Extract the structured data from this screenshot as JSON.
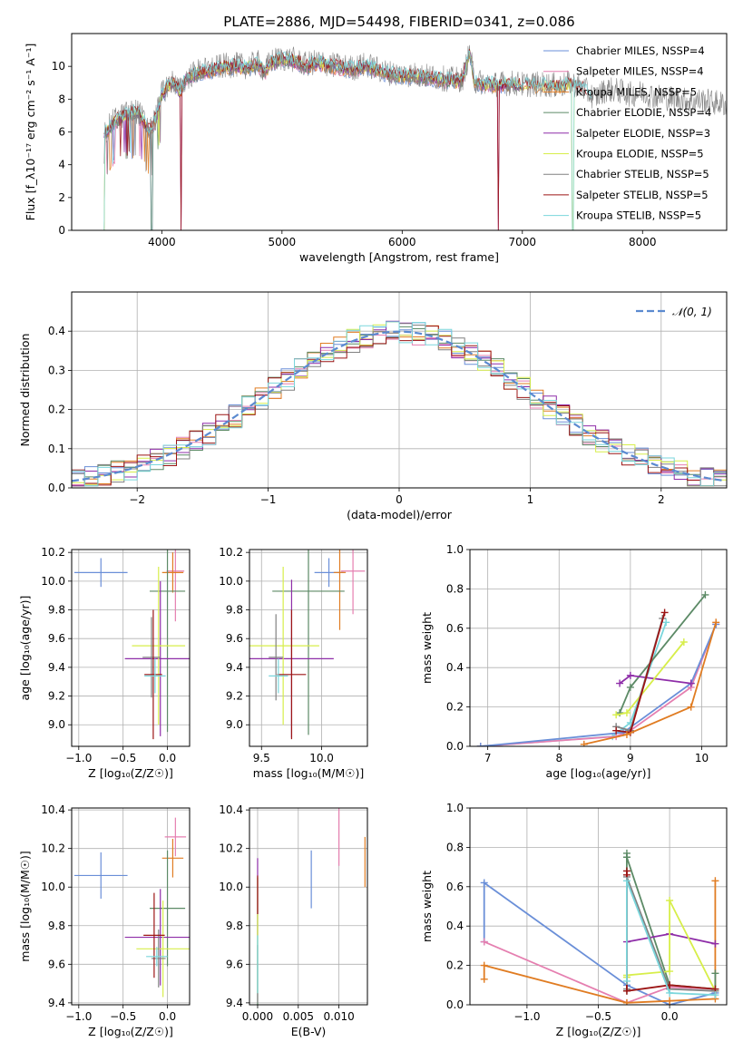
{
  "figure_title": "PLATE=2886, MJD=54498, FIBERID=0341, z=0.086",
  "colors": {
    "cornflower": "#6a8fd8",
    "pink": "#e57fb0",
    "orange": "#e07c22",
    "green": "#5c8a66",
    "purple": "#8e2da8",
    "lime": "#d7ee4a",
    "gray": "#808080",
    "darkred": "#9c1515",
    "cyan": "#7ad6dc"
  },
  "chart_data": [
    {
      "id": "spectrum",
      "type": "line",
      "title": "",
      "xlabel": "wavelength [Angstrom, rest frame]",
      "ylabel": "Flux [f_λ10⁻¹⁷ erg cm⁻² s⁻¹ A⁻¹]",
      "xlim": [
        3250,
        8700
      ],
      "ylim": [
        0,
        12
      ],
      "xticks": [
        4000,
        5000,
        6000,
        7000,
        8000
      ],
      "yticks": [
        0,
        2,
        4,
        6,
        8,
        10
      ],
      "grid": false,
      "legend_position": "top-right",
      "series": [
        {
          "name": "Chabrier MILES, NSSP=4",
          "color": "#6a8fd8"
        },
        {
          "name": "Salpeter MILES, NSSP=4",
          "color": "#e57fb0"
        },
        {
          "name": "Kroupa MILES, NSSP=5",
          "color": "#e07c22"
        },
        {
          "name": "Chabrier ELODIE, NSSP=4",
          "color": "#5c8a66"
        },
        {
          "name": "Salpeter ELODIE, NSSP=3",
          "color": "#8e2da8"
        },
        {
          "name": "Kroupa ELODIE, NSSP=5",
          "color": "#d7ee4a"
        },
        {
          "name": "Chabrier STELIB, NSSP=5",
          "color": "#808080"
        },
        {
          "name": "Salpeter STELIB, NSSP=5",
          "color": "#9c1515"
        },
        {
          "name": "Kroupa STELIB, NSSP=5",
          "color": "#7ad6dc"
        }
      ],
      "data_spectrum": {
        "x": [
          3520,
          3600,
          3700,
          3800,
          3850,
          3900,
          3950,
          4000,
          4050,
          4100,
          4150,
          4200,
          4300,
          4400,
          4500,
          4600,
          4700,
          4800,
          4861,
          4900,
          5000,
          5100,
          5200,
          5300,
          5400,
          5500,
          5600,
          5700,
          5800,
          5900,
          6000,
          6100,
          6200,
          6300,
          6400,
          6500,
          6563,
          6600,
          6700,
          6800,
          6900,
          7000,
          7100,
          7200,
          7300,
          7400,
          7500,
          7600,
          7700,
          7800,
          7900,
          8000,
          8100,
          8200,
          8300,
          8400,
          8500,
          8600,
          8700
        ],
        "y": [
          5.8,
          6.6,
          7.0,
          7.2,
          6.6,
          6.0,
          6.8,
          8.2,
          8.8,
          9.0,
          8.4,
          9.2,
          9.6,
          9.7,
          9.9,
          10.0,
          9.9,
          10.1,
          9.6,
          10.2,
          10.4,
          10.3,
          10.0,
          10.2,
          10.0,
          9.9,
          9.8,
          10.0,
          9.7,
          9.5,
          9.4,
          9.4,
          9.3,
          9.2,
          9.1,
          9.1,
          10.8,
          9.0,
          8.9,
          8.8,
          8.9,
          8.8,
          8.8,
          8.8,
          8.7,
          8.9,
          8.6,
          8.0,
          8.5,
          8.4,
          8.2,
          8.3,
          8.1,
          8.0,
          7.9,
          7.8,
          7.8,
          7.7,
          7.6
        ]
      }
    },
    {
      "id": "residuals",
      "type": "line",
      "title": "",
      "xlabel": "(data-model)/error",
      "ylabel": "Normed distribution",
      "xlim": [
        -2.5,
        2.5
      ],
      "ylim": [
        0,
        0.5
      ],
      "xticks": [
        -2,
        -1,
        0,
        1,
        2
      ],
      "yticks": [
        0.0,
        0.1,
        0.2,
        0.3,
        0.4
      ],
      "grid": true,
      "legend_position": "top-right",
      "legend_label": "𝒩(0, 1)",
      "gaussian_color": "#5b8ad0",
      "bin_width": 0.1
    },
    {
      "id": "age-vs-Z",
      "type": "scatter",
      "title": "",
      "xlabel": "Z [log₁₀(Z/Z☉)]",
      "ylabel": "age  [log₁₀(age/yr)]",
      "xlim": [
        -1.08,
        0.25
      ],
      "ylim": [
        8.85,
        10.22
      ],
      "xticks": [
        -1.0,
        -0.5,
        0.0
      ],
      "yticks": [
        9.0,
        9.2,
        9.4,
        9.6,
        9.8,
        10.0,
        10.2
      ],
      "grid": true,
      "points": [
        {
          "x": -0.75,
          "y": 10.06,
          "xerr": 0.3,
          "yerr": 0.1,
          "color": "#6a8fd8"
        },
        {
          "x": 0.09,
          "y": 10.07,
          "xerr": 0.1,
          "yerr": 0.35,
          "color": "#e57fb0"
        },
        {
          "x": 0.06,
          "y": 10.06,
          "xerr": 0.12,
          "yerr": 0.14,
          "color": "#e07c22"
        },
        {
          "x": 0.0,
          "y": 9.93,
          "xerr": 0.2,
          "yerr": 0.98,
          "color": "#5c8a66"
        },
        {
          "x": -0.08,
          "y": 9.46,
          "xerr": 0.4,
          "yerr": 0.54,
          "color": "#8e2da8"
        },
        {
          "x": -0.1,
          "y": 9.55,
          "xerr": 0.3,
          "yerr": 0.55,
          "color": "#d7ee4a"
        },
        {
          "x": -0.18,
          "y": 9.47,
          "xerr": 0.1,
          "yerr": 0.28,
          "color": "#808080"
        },
        {
          "x": -0.16,
          "y": 9.35,
          "xerr": 0.1,
          "yerr": 0.45,
          "color": "#9c1515"
        },
        {
          "x": -0.14,
          "y": 9.34,
          "xerr": 0.12,
          "yerr": 0.12,
          "color": "#7ad6dc"
        }
      ]
    },
    {
      "id": "age-vs-mass",
      "type": "scatter",
      "title": "",
      "xlabel": "mass [log₁₀(M/M☉)]",
      "ylabel": "",
      "xlim": [
        9.4,
        10.38
      ],
      "ylim": [
        8.85,
        10.22
      ],
      "xticks": [
        9.5,
        10.0
      ],
      "yticks": [
        9.0,
        9.2,
        9.4,
        9.6,
        9.8,
        10.0,
        10.2
      ],
      "grid": true,
      "points": [
        {
          "x": 10.06,
          "y": 10.06,
          "xerr": 0.12,
          "yerr": 0.1,
          "color": "#6a8fd8"
        },
        {
          "x": 10.26,
          "y": 10.07,
          "xerr": 0.1,
          "yerr": 0.3,
          "color": "#e57fb0"
        },
        {
          "x": 10.15,
          "y": 10.06,
          "xerr": 0.05,
          "yerr": 0.4,
          "color": "#e07c22"
        },
        {
          "x": 9.89,
          "y": 9.93,
          "xerr": 0.3,
          "yerr": 1.0,
          "color": "#5c8a66"
        },
        {
          "x": 9.75,
          "y": 9.46,
          "xerr": 0.35,
          "yerr": 0.55,
          "color": "#8e2da8"
        },
        {
          "x": 9.68,
          "y": 9.55,
          "xerr": 0.3,
          "yerr": 0.55,
          "color": "#d7ee4a"
        },
        {
          "x": 9.62,
          "y": 9.47,
          "xerr": 0.06,
          "yerr": 0.3,
          "color": "#808080"
        },
        {
          "x": 9.75,
          "y": 9.35,
          "xerr": 0.12,
          "yerr": 0.45,
          "color": "#9c1515"
        },
        {
          "x": 9.64,
          "y": 9.34,
          "xerr": 0.08,
          "yerr": 0.12,
          "color": "#7ad6dc"
        }
      ]
    },
    {
      "id": "weight-vs-age",
      "type": "line",
      "title": "",
      "xlabel": "age  [log₁₀(age/yr)]",
      "ylabel": "mass weight",
      "xlim": [
        6.75,
        10.35
      ],
      "ylim": [
        0,
        1
      ],
      "xticks": [
        7,
        8,
        9,
        10
      ],
      "yticks": [
        0.0,
        0.2,
        0.4,
        0.6,
        0.8,
        1.0
      ],
      "grid": true,
      "series": [
        {
          "color": "#7ad6dc",
          "x": [
            6.9,
            8.75,
            9.0,
            9.5
          ],
          "y": [
            0.0,
            0.05,
            0.12,
            0.63
          ]
        },
        {
          "color": "#e57fb0",
          "x": [
            6.9,
            8.8,
            9.0,
            9.85,
            10.2
          ],
          "y": [
            0.0,
            0.05,
            0.08,
            0.3,
            0.62
          ]
        },
        {
          "color": "#6a8fd8",
          "x": [
            6.9,
            8.9,
            9.85,
            10.2
          ],
          "y": [
            0.0,
            0.07,
            0.32,
            0.62
          ]
        },
        {
          "color": "#5c8a66",
          "x": [
            8.85,
            9.0,
            10.05
          ],
          "y": [
            0.17,
            0.3,
            0.77
          ]
        },
        {
          "color": "#8e2da8",
          "x": [
            8.85,
            9.0,
            9.85
          ],
          "y": [
            0.32,
            0.36,
            0.32
          ]
        },
        {
          "color": "#d7ee4a",
          "x": [
            8.8,
            8.95,
            9.75
          ],
          "y": [
            0.16,
            0.17,
            0.53
          ]
        },
        {
          "color": "#808080",
          "x": [
            8.8,
            9.0,
            9.45
          ],
          "y": [
            0.1,
            0.08,
            0.65
          ]
        },
        {
          "color": "#9c1515",
          "x": [
            8.8,
            9.0,
            9.48
          ],
          "y": [
            0.08,
            0.07,
            0.68
          ]
        },
        {
          "color": "#e07c22",
          "x": [
            8.35,
            8.95,
            9.85,
            10.2
          ],
          "y": [
            0.01,
            0.06,
            0.2,
            0.63
          ]
        }
      ]
    },
    {
      "id": "mass-vs-Z",
      "type": "scatter",
      "title": "",
      "xlabel": "Z [log₁₀(Z/Z☉)]",
      "ylabel": "mass [log₁₀(M/M☉)]",
      "xlim": [
        -1.08,
        0.25
      ],
      "ylim": [
        9.39,
        10.41
      ],
      "xticks": [
        -1.0,
        -0.5,
        0.0
      ],
      "yticks": [
        9.4,
        9.6,
        9.8,
        10.0,
        10.2,
        10.4
      ],
      "grid": true,
      "points": [
        {
          "x": -0.75,
          "y": 10.06,
          "xerr": 0.3,
          "yerr": 0.12,
          "color": "#6a8fd8"
        },
        {
          "x": 0.09,
          "y": 10.26,
          "xerr": 0.12,
          "yerr": 0.1,
          "color": "#e57fb0"
        },
        {
          "x": 0.06,
          "y": 10.15,
          "xerr": 0.12,
          "yerr": 0.1,
          "color": "#e07c22"
        },
        {
          "x": 0.0,
          "y": 9.89,
          "xerr": 0.2,
          "yerr": 0.3,
          "color": "#5c8a66"
        },
        {
          "x": -0.08,
          "y": 9.74,
          "xerr": 0.4,
          "yerr": 0.25,
          "color": "#8e2da8"
        },
        {
          "x": -0.05,
          "y": 9.68,
          "xerr": 0.3,
          "yerr": 0.25,
          "color": "#d7ee4a"
        },
        {
          "x": -0.1,
          "y": 9.63,
          "xerr": 0.08,
          "yerr": 0.15,
          "color": "#808080"
        },
        {
          "x": -0.15,
          "y": 9.75,
          "xerr": 0.12,
          "yerr": 0.22,
          "color": "#9c1515"
        },
        {
          "x": -0.12,
          "y": 9.64,
          "xerr": 0.12,
          "yerr": 0.05,
          "color": "#7ad6dc"
        }
      ]
    },
    {
      "id": "mass-vs-ebv",
      "type": "scatter",
      "title": "",
      "xlabel": "E(B-V)",
      "ylabel": "",
      "xlim": [
        -0.001,
        0.0135
      ],
      "ylim": [
        9.39,
        10.41
      ],
      "xticks": [
        0.0,
        0.005,
        0.01
      ],
      "yticks": [
        9.4,
        9.6,
        9.8,
        10.0,
        10.2,
        10.4
      ],
      "grid": true,
      "points": [
        {
          "x": 0.0066,
          "y": 10.04,
          "xerr": 0,
          "yerr": 0.15,
          "color": "#6a8fd8"
        },
        {
          "x": 0.01,
          "y": 10.26,
          "xerr": 0,
          "yerr": 0.15,
          "color": "#e57fb0"
        },
        {
          "x": 0.0132,
          "y": 10.13,
          "xerr": 0,
          "yerr": 0.13,
          "color": "#e07c22"
        },
        {
          "x": 0.0,
          "y": 9.72,
          "xerr": 0,
          "yerr": 0.33,
          "color": "#5c8a66"
        },
        {
          "x": 0.0,
          "y": 9.95,
          "xerr": 0,
          "yerr": 0.2,
          "color": "#8e2da8"
        },
        {
          "x": 0.0,
          "y": 9.75,
          "xerr": 0,
          "yerr": 0.3,
          "color": "#d7ee4a"
        },
        {
          "x": 0.0,
          "y": 9.55,
          "xerr": 0,
          "yerr": 0.15,
          "color": "#808080"
        },
        {
          "x": 0.0,
          "y": 9.96,
          "xerr": 0,
          "yerr": 0.1,
          "color": "#9c1515"
        },
        {
          "x": 0.0,
          "y": 9.6,
          "xerr": 0,
          "yerr": 0.15,
          "color": "#7ad6dc"
        }
      ]
    },
    {
      "id": "weight-vs-Z",
      "type": "line",
      "title": "",
      "xlabel": "Z [log₁₀(Z/Z☉)]",
      "ylabel": "mass weight",
      "xlim": [
        -1.4,
        0.4
      ],
      "ylim": [
        0,
        1
      ],
      "xticks": [
        -1.0,
        -0.5,
        0.0
      ],
      "yticks": [
        0.0,
        0.2,
        0.4,
        0.6,
        0.8,
        1.0
      ],
      "grid": true,
      "series": [
        {
          "color": "#6a8fd8",
          "x": [
            -1.3,
            -1.3,
            -0.3,
            0.0,
            0.32
          ],
          "y": [
            0.32,
            0.62,
            0.1,
            0.0,
            0.06
          ]
        },
        {
          "color": "#e57fb0",
          "x": [
            -1.3,
            -0.3,
            0.0,
            0.32
          ],
          "y": [
            0.32,
            0.01,
            0.09,
            0.08
          ]
        },
        {
          "color": "#e07c22",
          "x": [
            -1.3,
            -1.3,
            -0.3,
            0.0,
            0.32,
            0.32
          ],
          "y": [
            0.13,
            0.2,
            0.01,
            0.02,
            0.03,
            0.63
          ]
        },
        {
          "color": "#5c8a66",
          "x": [
            -0.3,
            -0.3,
            -0.3,
            0.0,
            0.32,
            0.32
          ],
          "y": [
            0.07,
            0.77,
            0.75,
            0.1,
            0.08,
            0.16
          ]
        },
        {
          "color": "#8e2da8",
          "x": [
            -0.3,
            0.0,
            0.32
          ],
          "y": [
            0.32,
            0.36,
            0.31
          ]
        },
        {
          "color": "#d7ee4a",
          "x": [
            -0.3,
            -0.3,
            0.0,
            0.0,
            0.32
          ],
          "y": [
            0.14,
            0.15,
            0.17,
            0.53,
            0.07
          ]
        },
        {
          "color": "#808080",
          "x": [
            -0.3,
            -0.3,
            0.0,
            0.32
          ],
          "y": [
            0.08,
            0.65,
            0.08,
            0.07
          ]
        },
        {
          "color": "#9c1515",
          "x": [
            -0.3,
            -0.3,
            -0.3,
            0.0,
            0.32
          ],
          "y": [
            0.66,
            0.68,
            0.07,
            0.1,
            0.08
          ]
        },
        {
          "color": "#7ad6dc",
          "x": [
            -0.3,
            -0.3,
            0.0,
            0.32
          ],
          "y": [
            0.12,
            0.63,
            0.06,
            0.05
          ]
        }
      ]
    }
  ]
}
